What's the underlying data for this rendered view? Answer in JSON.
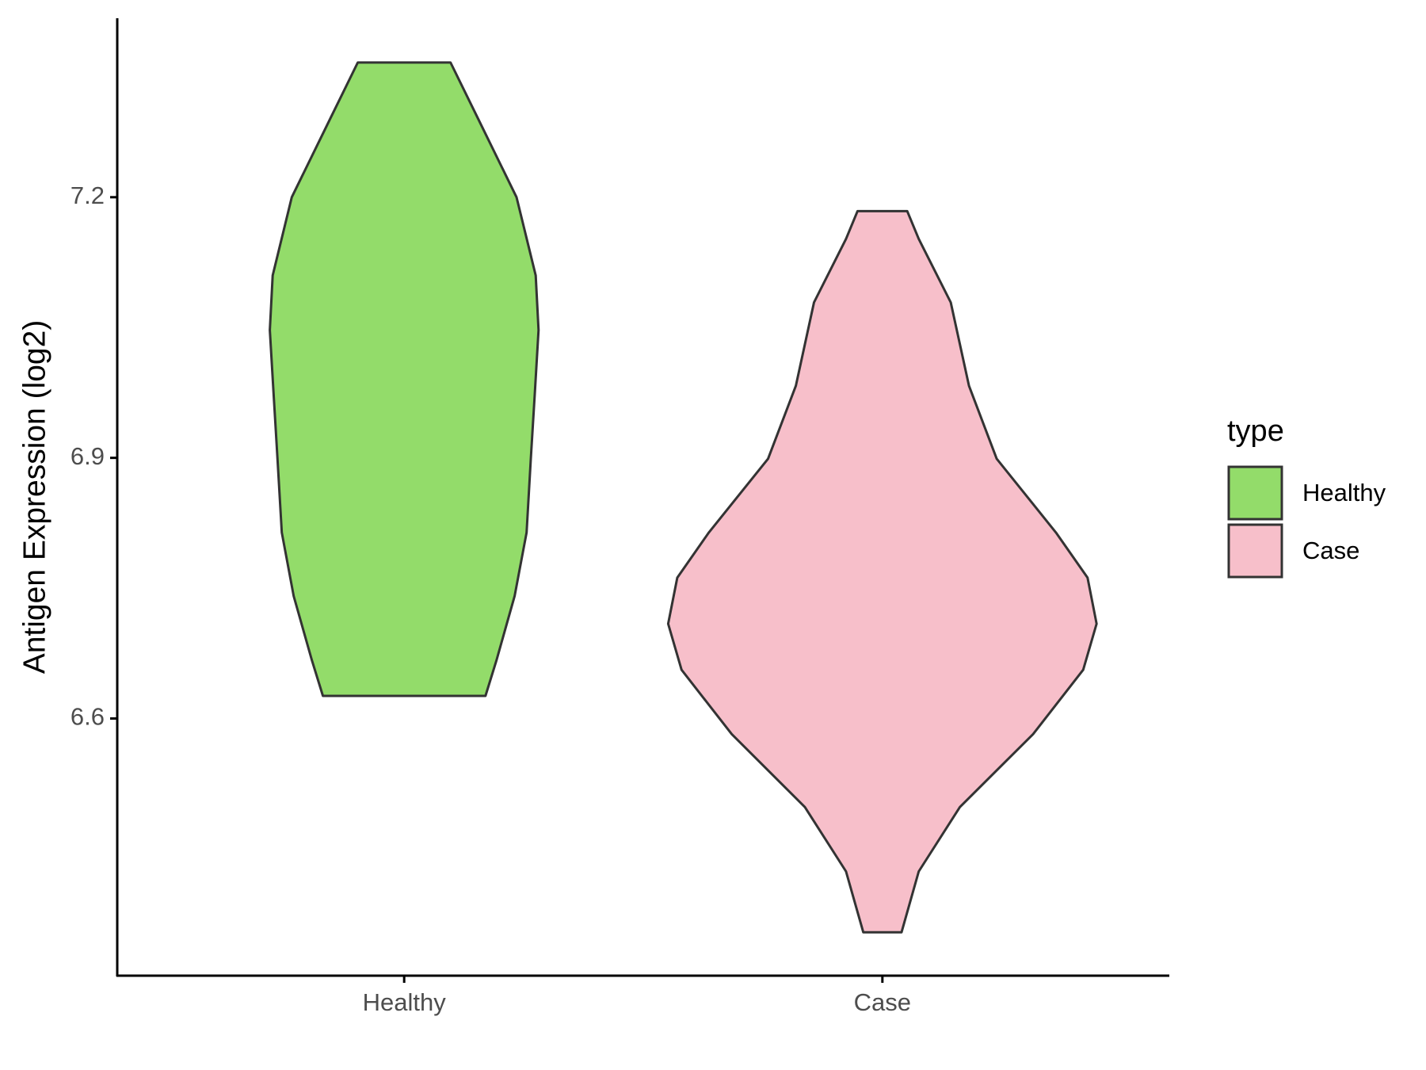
{
  "chart_data": {
    "type": "violin",
    "y_label": "Antigen Expression (log2)",
    "categories": [
      "Healthy",
      "Case"
    ],
    "ylim": [
      6.304,
      7.406
    ],
    "yticks": [
      6.6,
      6.9,
      7.2
    ],
    "legend_title": "type",
    "legend_position": "right",
    "series": [
      {
        "name": "Healthy",
        "color": "#93dc6a",
        "y": [
          7.355,
          7.29,
          7.2,
          7.11,
          7.047,
          6.973,
          6.9,
          6.814,
          6.741,
          6.667,
          6.626
        ],
        "width": [
          0.097,
          0.155,
          0.235,
          0.275,
          0.281,
          0.273,
          0.265,
          0.256,
          0.231,
          0.193,
          0.17
        ]
      },
      {
        "name": "Case",
        "color": "#f7bfca",
        "y": [
          7.184,
          7.152,
          7.079,
          6.983,
          6.899,
          6.814,
          6.762,
          6.709,
          6.656,
          6.582,
          6.498,
          6.424,
          6.354
        ],
        "width": [
          0.052,
          0.076,
          0.143,
          0.181,
          0.239,
          0.363,
          0.429,
          0.448,
          0.42,
          0.315,
          0.162,
          0.076,
          0.04
        ]
      }
    ]
  }
}
